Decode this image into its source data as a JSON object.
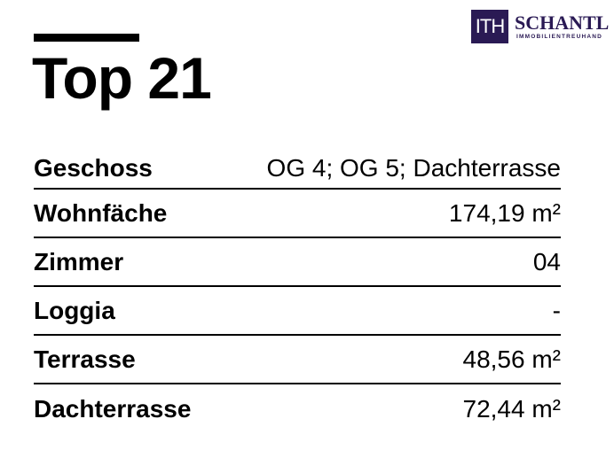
{
  "title": "Top 21",
  "logo": {
    "mark": "ITH",
    "name": "SCHANTL",
    "subtitle": "IMMOBILIENTREUHAND",
    "color": "#2a1a54"
  },
  "rows": [
    {
      "label": "Geschoss",
      "value": "OG 4; OG 5; Dachterrasse"
    },
    {
      "label": "Wohnfäche",
      "value": "174,19 m²"
    },
    {
      "label": "Zimmer",
      "value": "04"
    },
    {
      "label": "Loggia",
      "value": "-"
    },
    {
      "label": "Terrasse",
      "value": "48,56 m²"
    },
    {
      "label": "Dachterrasse",
      "value": "72,44 m²"
    }
  ]
}
